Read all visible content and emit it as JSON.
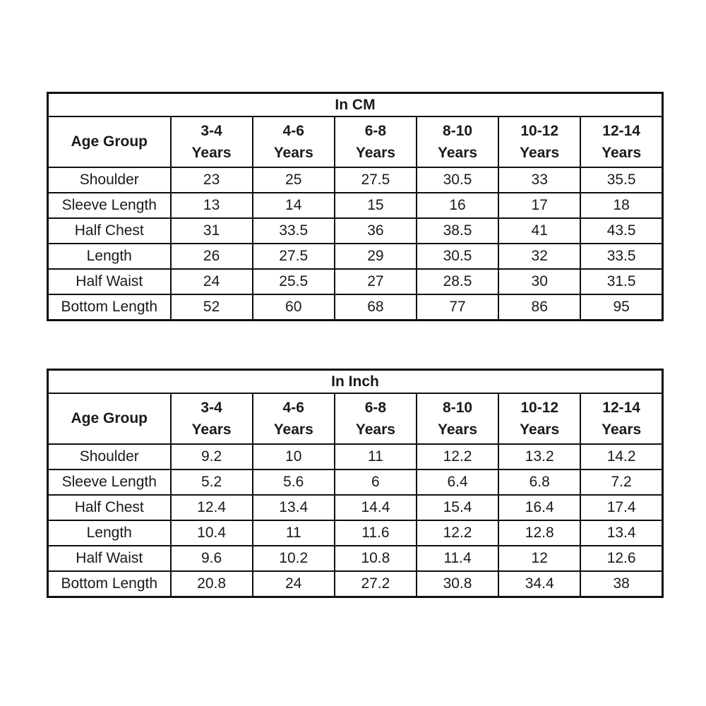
{
  "colors": {
    "background": "#ffffff",
    "border": "#0f0f0f",
    "text": "#1a1a1a"
  },
  "tables": [
    {
      "id": "cm",
      "title": "In CM",
      "corner_label": "Age Group",
      "columns": [
        {
          "range": "3-4",
          "unit": "Years"
        },
        {
          "range": "4-6",
          "unit": "Years"
        },
        {
          "range": "6-8",
          "unit": "Years"
        },
        {
          "range": "8-10",
          "unit": "Years"
        },
        {
          "range": "10-12",
          "unit": "Years"
        },
        {
          "range": "12-14",
          "unit": "Years"
        }
      ],
      "rows": [
        {
          "label": "Shoulder",
          "values": [
            23,
            25,
            27.5,
            30.5,
            33,
            35.5
          ]
        },
        {
          "label": "Sleeve Length",
          "values": [
            13,
            14,
            15,
            16,
            17,
            18
          ]
        },
        {
          "label": "Half Chest",
          "values": [
            31,
            33.5,
            36,
            38.5,
            41,
            43.5
          ]
        },
        {
          "label": "Length",
          "values": [
            26,
            27.5,
            29,
            30.5,
            32,
            33.5
          ]
        },
        {
          "label": "Half Waist",
          "values": [
            24,
            25.5,
            27,
            28.5,
            30,
            31.5
          ]
        },
        {
          "label": "Bottom Length",
          "values": [
            52,
            60,
            68,
            77,
            86,
            95
          ]
        }
      ]
    },
    {
      "id": "inch",
      "title": "In Inch",
      "corner_label": "Age Group",
      "columns": [
        {
          "range": "3-4",
          "unit": "Years"
        },
        {
          "range": "4-6",
          "unit": "Years"
        },
        {
          "range": "6-8",
          "unit": "Years"
        },
        {
          "range": "8-10",
          "unit": "Years"
        },
        {
          "range": "10-12",
          "unit": "Years"
        },
        {
          "range": "12-14",
          "unit": "Years"
        }
      ],
      "rows": [
        {
          "label": "Shoulder",
          "values": [
            9.2,
            10,
            11,
            12.2,
            13.2,
            14.2
          ]
        },
        {
          "label": "Sleeve Length",
          "values": [
            5.2,
            5.6,
            6,
            6.4,
            6.8,
            7.2
          ]
        },
        {
          "label": "Half Chest",
          "values": [
            12.4,
            13.4,
            14.4,
            15.4,
            16.4,
            17.4
          ]
        },
        {
          "label": "Length",
          "values": [
            10.4,
            11,
            11.6,
            12.2,
            12.8,
            13.4
          ]
        },
        {
          "label": "Half Waist",
          "values": [
            9.6,
            10.2,
            10.8,
            11.4,
            12,
            12.6
          ]
        },
        {
          "label": "Bottom Length",
          "values": [
            20.8,
            24,
            27.2,
            30.8,
            34.4,
            38
          ]
        }
      ]
    }
  ]
}
